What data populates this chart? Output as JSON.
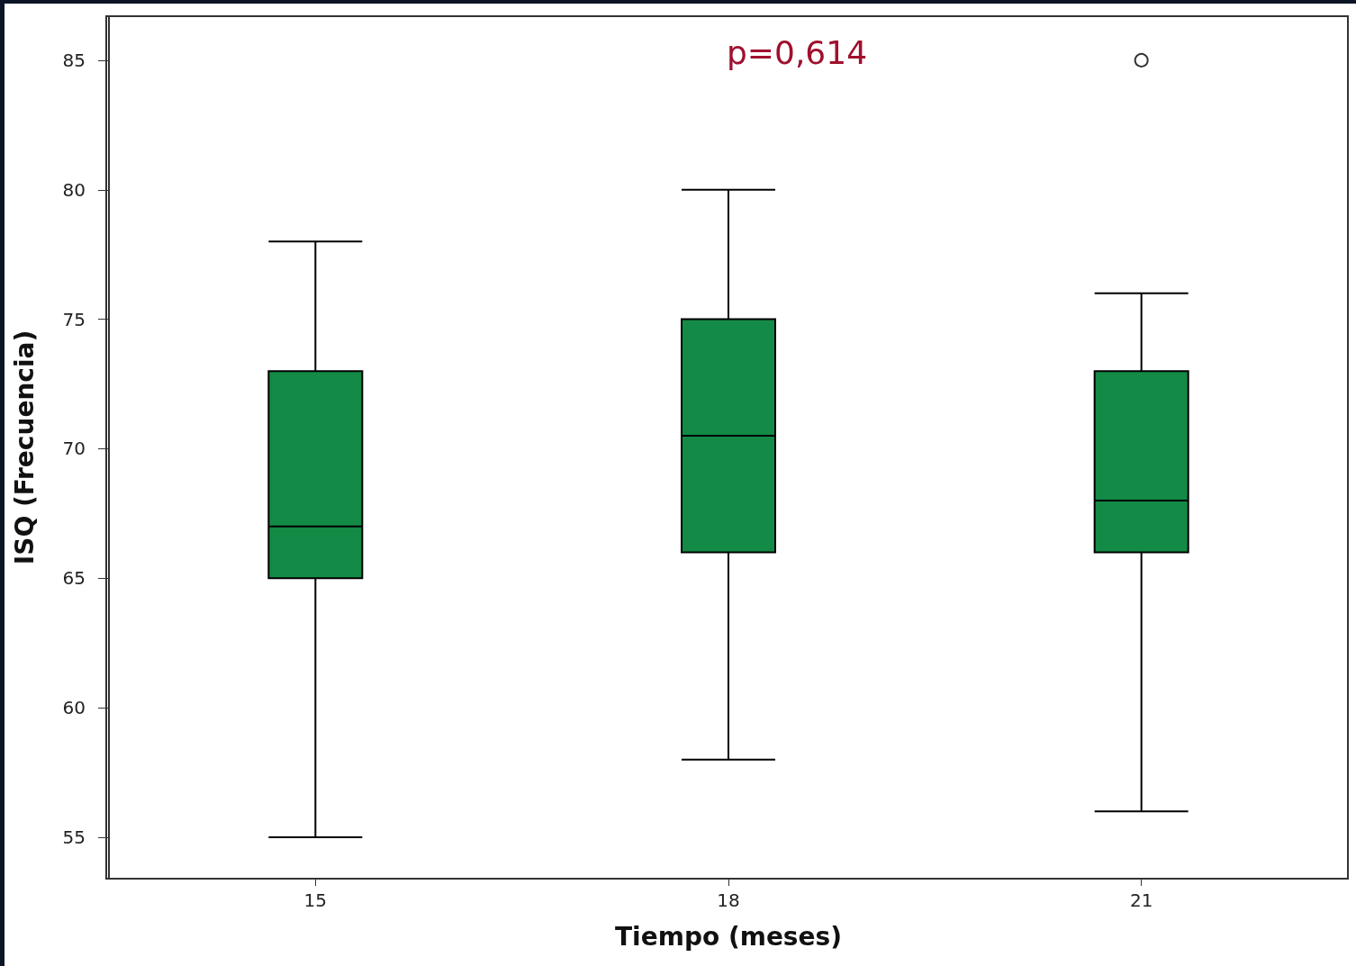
{
  "chart_data": {
    "type": "box",
    "xlabel": "Tiempo (meses)",
    "ylabel": "ISQ (Frecuencia)",
    "categories": [
      "15",
      "18",
      "21"
    ],
    "color": "#138a46",
    "boxes": [
      {
        "low": 55,
        "q1": 65,
        "median": 67,
        "q3": 73,
        "high": 78
      },
      {
        "low": 58,
        "q1": 66,
        "median": 70.5,
        "q3": 75,
        "high": 80
      },
      {
        "low": 56,
        "q1": 66,
        "median": 68,
        "q3": 73,
        "high": 76,
        "outliers": [
          85
        ]
      }
    ],
    "ylim": [
      53.4,
      86.7
    ],
    "yticks": [
      55,
      60,
      65,
      70,
      75,
      80,
      85
    ],
    "grid": false,
    "annotations": [
      "p=0,614"
    ]
  }
}
